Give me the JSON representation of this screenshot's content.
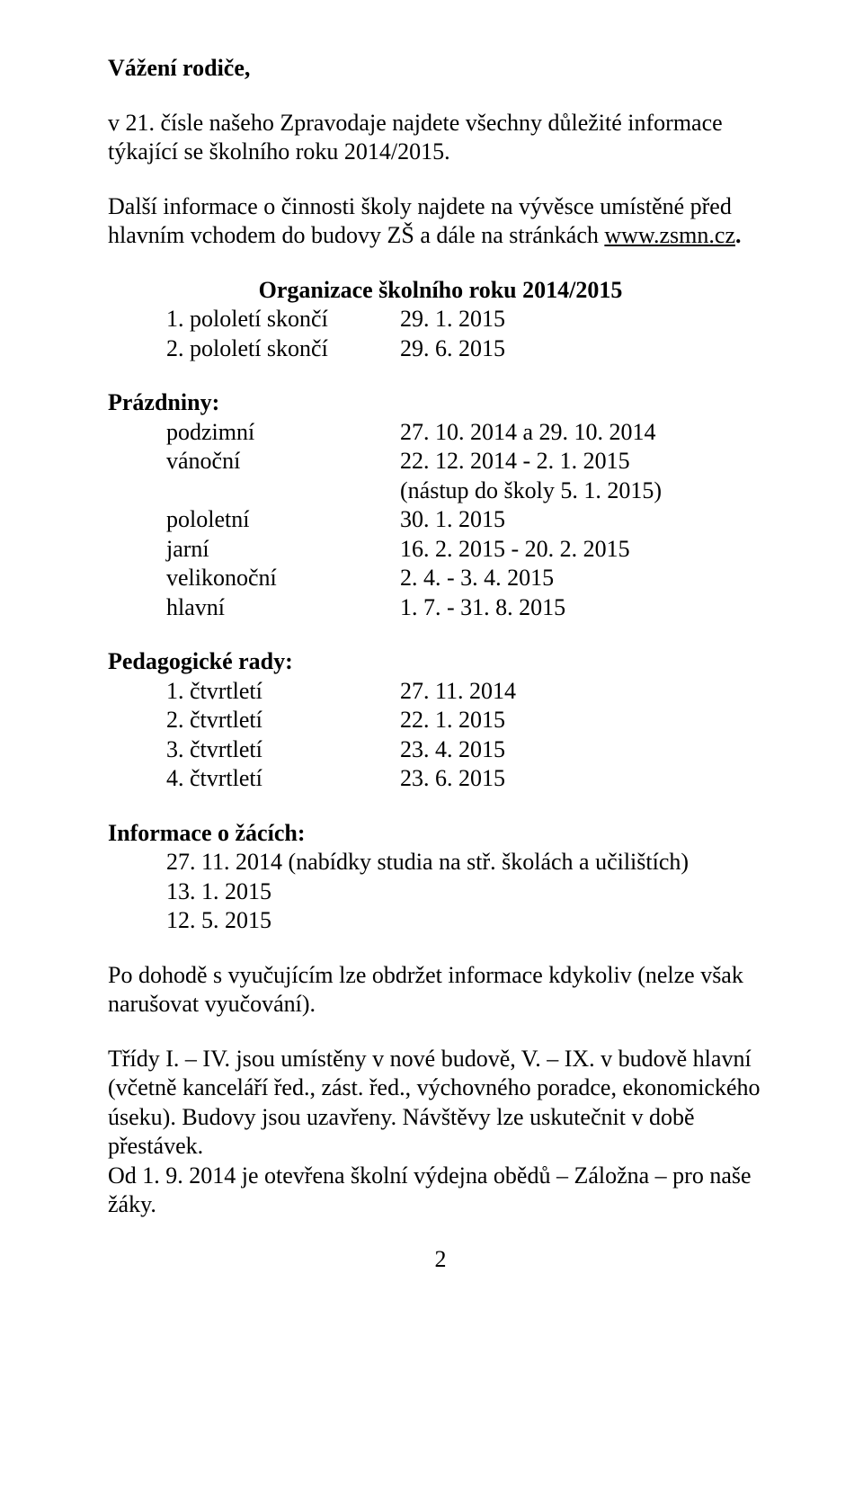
{
  "salutation": "Vážení rodiče,",
  "intro": {
    "p1_a": "v 21. čísle našeho Zpravodaje najdete všechny důležité informace týkající se školního roku 2014/2015.",
    "p2_a": "Další informace o činnosti školy najdete na vývěsce umístěné před hlavním vchodem do budovy ZŠ a dále na stránkách ",
    "link": "www.zsmn.cz",
    "p2_b": "."
  },
  "org_heading": "Organizace školního roku 2014/2015",
  "pololeti": [
    {
      "label": "1. pololetí skončí",
      "value": "29. 1. 2015"
    },
    {
      "label": "2. pololetí skončí",
      "value": "29. 6. 2015"
    }
  ],
  "prazdniny_heading": "Prázdniny:",
  "prazdniny": [
    {
      "label": "podzimní",
      "value": "27. 10. 2014 a 29. 10. 2014"
    },
    {
      "label": "vánoční",
      "value": "22. 12. 2014 - 2. 1. 2015"
    },
    {
      "label": "",
      "value": "(nástup do školy 5. 1. 2015)"
    },
    {
      "label": "pololetní",
      "value": "30. 1. 2015"
    },
    {
      "label": "jarní",
      "value": "16. 2. 2015 - 20. 2. 2015"
    },
    {
      "label": "velikonoční",
      "value": "2. 4. - 3. 4. 2015"
    },
    {
      "label": "hlavní",
      "value": "1. 7. - 31. 8. 2015"
    }
  ],
  "pedrady_heading": "Pedagogické rady:",
  "pedrady": [
    {
      "label": "1. čtvrtletí",
      "value": "27. 11. 2014"
    },
    {
      "label": "2. čtvrtletí",
      "value": "22. 1. 2015"
    },
    {
      "label": "3. čtvrtletí",
      "value": "23. 4. 2015"
    },
    {
      "label": "4. čtvrtletí",
      "value": "23. 6. 2015"
    }
  ],
  "info_heading": "Informace o žácích:",
  "info_lines": [
    "27. 11. 2014 (nabídky studia na stř. školách a učilištích)",
    "13. 1. 2015",
    "12. 5. 2015"
  ],
  "closing": {
    "p1": "Po dohodě s vyučujícím lze obdržet informace kdykoliv (nelze však narušovat vyučování).",
    "p2": "Třídy I. – IV. jsou umístěny v nové budově, V. – IX. v budově hlavní (včetně kanceláří řed., zást. řed., výchovného poradce, ekonomického úseku). Budovy jsou uzavřeny. Návštěvy lze uskutečnit v době přestávek.",
    "p3": "Od 1. 9. 2014 je otevřena školní výdejna obědů – Záložna – pro naše žáky."
  },
  "page_number": "2"
}
